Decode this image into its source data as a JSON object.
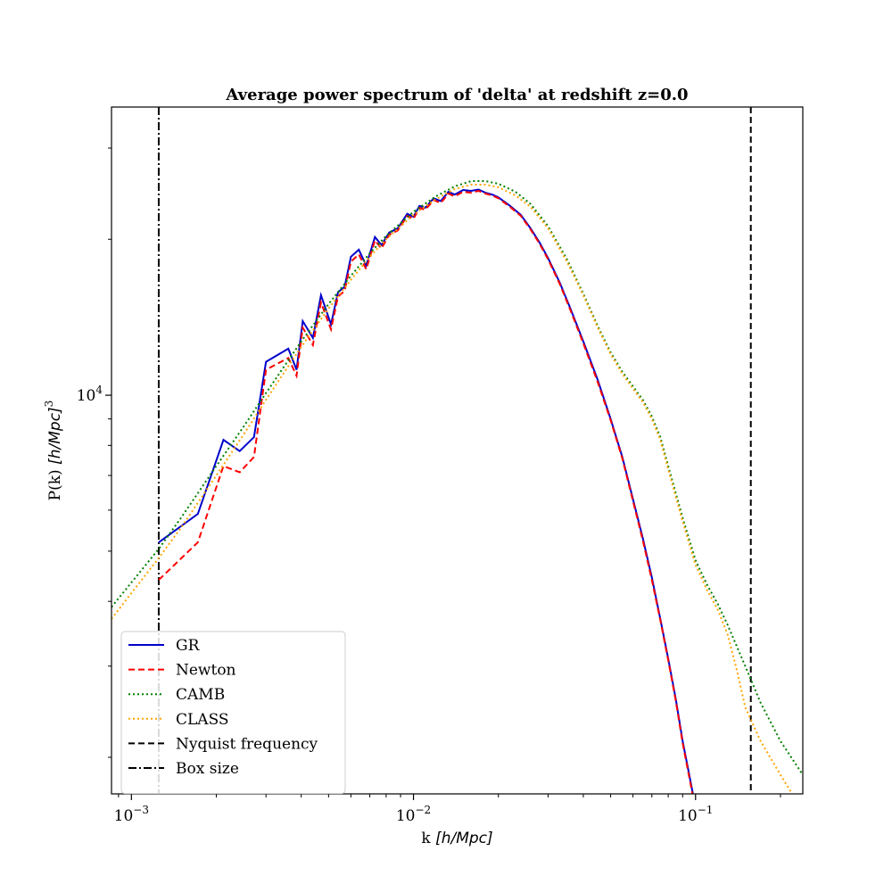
{
  "chart_data": {
    "type": "line",
    "title": "Average power spectrum of 'delta' at redshift z=0.0",
    "xlabel": {
      "prefix": "k ",
      "unit": "[h/Mpc]"
    },
    "ylabel": {
      "prefix": "P(k) ",
      "unit": "[h/Mpc]",
      "power": "3"
    },
    "xscale": "log",
    "yscale": "log",
    "xlim": [
      0.00085,
      0.24
    ],
    "ylim": [
      1700,
      36000
    ],
    "grid": false,
    "legend_position": "lower-left",
    "x_ticks": [
      {
        "value": 0.001,
        "base": "10",
        "power": "−3"
      },
      {
        "value": 0.01,
        "base": "10",
        "power": "−2"
      },
      {
        "value": 0.1,
        "base": "10",
        "power": "−1"
      }
    ],
    "y_ticks": [
      {
        "value": 10000,
        "base": "10",
        "power": "4"
      }
    ],
    "series": [
      {
        "name": "GR",
        "color": "#0000cc",
        "dash": "solid",
        "points": [
          [
            0.00125,
            5200
          ],
          [
            0.00172,
            5900
          ],
          [
            0.00212,
            8200
          ],
          [
            0.00242,
            7800
          ],
          [
            0.00272,
            8300
          ],
          [
            0.003,
            11600
          ],
          [
            0.0036,
            12300
          ],
          [
            0.00385,
            11200
          ],
          [
            0.00405,
            13900
          ],
          [
            0.0044,
            12900
          ],
          [
            0.0047,
            15600
          ],
          [
            0.0051,
            13700
          ],
          [
            0.0054,
            15800
          ],
          [
            0.0057,
            16200
          ],
          [
            0.006,
            18500
          ],
          [
            0.0064,
            19100
          ],
          [
            0.0068,
            17800
          ],
          [
            0.0073,
            20200
          ],
          [
            0.0077,
            19500
          ],
          [
            0.0082,
            20600
          ],
          [
            0.0088,
            21000
          ],
          [
            0.0095,
            22400
          ],
          [
            0.01,
            22100
          ],
          [
            0.0105,
            23200
          ],
          [
            0.011,
            23000
          ],
          [
            0.0118,
            24000
          ],
          [
            0.0125,
            23700
          ],
          [
            0.0133,
            24700
          ],
          [
            0.014,
            24400
          ],
          [
            0.015,
            24900
          ],
          [
            0.016,
            24800
          ],
          [
            0.017,
            24950
          ],
          [
            0.018,
            24600
          ],
          [
            0.019,
            24400
          ],
          [
            0.02,
            24100
          ],
          [
            0.022,
            23200
          ],
          [
            0.024,
            22300
          ],
          [
            0.026,
            21000
          ],
          [
            0.028,
            19700
          ],
          [
            0.03,
            18400
          ],
          [
            0.033,
            16500
          ],
          [
            0.036,
            14700
          ],
          [
            0.04,
            12700
          ],
          [
            0.045,
            10700
          ],
          [
            0.05,
            9000
          ],
          [
            0.055,
            7600
          ],
          [
            0.06,
            6300
          ],
          [
            0.065,
            5300
          ],
          [
            0.07,
            4450
          ],
          [
            0.075,
            3700
          ],
          [
            0.08,
            3100
          ],
          [
            0.085,
            2600
          ],
          [
            0.09,
            2150
          ],
          [
            0.095,
            1850
          ],
          [
            0.1,
            1600
          ]
        ]
      },
      {
        "name": "Newton",
        "color": "#ff0000",
        "dash": "dashed",
        "points": [
          [
            0.00125,
            4400
          ],
          [
            0.00172,
            5200
          ],
          [
            0.00212,
            7300
          ],
          [
            0.00242,
            7100
          ],
          [
            0.00272,
            7600
          ],
          [
            0.003,
            11200
          ],
          [
            0.0036,
            11800
          ],
          [
            0.00385,
            10900
          ],
          [
            0.00405,
            13500
          ],
          [
            0.0044,
            12500
          ],
          [
            0.0047,
            15100
          ],
          [
            0.0051,
            13400
          ],
          [
            0.0054,
            15500
          ],
          [
            0.0057,
            15900
          ],
          [
            0.006,
            18100
          ],
          [
            0.0064,
            18700
          ],
          [
            0.0068,
            17500
          ],
          [
            0.0073,
            19900
          ],
          [
            0.0077,
            19200
          ],
          [
            0.0082,
            20400
          ],
          [
            0.0088,
            20800
          ],
          [
            0.0095,
            22200
          ],
          [
            0.01,
            21900
          ],
          [
            0.0105,
            23000
          ],
          [
            0.011,
            22800
          ],
          [
            0.0118,
            23800
          ],
          [
            0.0125,
            23500
          ],
          [
            0.0133,
            24500
          ],
          [
            0.014,
            24200
          ],
          [
            0.015,
            24700
          ],
          [
            0.016,
            24600
          ],
          [
            0.017,
            24800
          ],
          [
            0.018,
            24500
          ],
          [
            0.019,
            24300
          ],
          [
            0.02,
            24000
          ],
          [
            0.022,
            23100
          ],
          [
            0.024,
            22200
          ],
          [
            0.026,
            20900
          ],
          [
            0.028,
            19600
          ],
          [
            0.03,
            18300
          ],
          [
            0.033,
            16400
          ],
          [
            0.036,
            14600
          ],
          [
            0.04,
            12600
          ],
          [
            0.045,
            10600
          ],
          [
            0.05,
            8950
          ],
          [
            0.055,
            7550
          ],
          [
            0.06,
            6250
          ],
          [
            0.065,
            5250
          ],
          [
            0.07,
            4400
          ],
          [
            0.075,
            3680
          ],
          [
            0.08,
            3080
          ],
          [
            0.085,
            2580
          ],
          [
            0.09,
            2130
          ],
          [
            0.095,
            1830
          ],
          [
            0.1,
            1580
          ]
        ]
      },
      {
        "name": "CAMB",
        "color": "#008000",
        "dash": "dotted",
        "points": [
          [
            0.00085,
            3900
          ],
          [
            0.001,
            4350
          ],
          [
            0.00125,
            5050
          ],
          [
            0.0015,
            5800
          ],
          [
            0.002,
            7300
          ],
          [
            0.0025,
            8700
          ],
          [
            0.003,
            10100
          ],
          [
            0.004,
            12700
          ],
          [
            0.005,
            15000
          ],
          [
            0.006,
            17000
          ],
          [
            0.007,
            18800
          ],
          [
            0.008,
            20300
          ],
          [
            0.01,
            22600
          ],
          [
            0.012,
            24200
          ],
          [
            0.014,
            25300
          ],
          [
            0.016,
            25900
          ],
          [
            0.018,
            25900
          ],
          [
            0.02,
            25600
          ],
          [
            0.023,
            24700
          ],
          [
            0.026,
            23400
          ],
          [
            0.03,
            21200
          ],
          [
            0.035,
            18300
          ],
          [
            0.04,
            15700
          ],
          [
            0.045,
            13600
          ],
          [
            0.05,
            12100
          ],
          [
            0.055,
            11100
          ],
          [
            0.06,
            10400
          ],
          [
            0.065,
            9800
          ],
          [
            0.07,
            9100
          ],
          [
            0.075,
            8300
          ],
          [
            0.08,
            7300
          ],
          [
            0.09,
            5800
          ],
          [
            0.1,
            4800
          ],
          [
            0.11,
            4300
          ],
          [
            0.12,
            3950
          ],
          [
            0.13,
            3600
          ],
          [
            0.15,
            3000
          ],
          [
            0.17,
            2550
          ],
          [
            0.2,
            2150
          ],
          [
            0.24,
            1850
          ]
        ]
      },
      {
        "name": "CLASS",
        "color": "#ffa500",
        "dash": "dotted",
        "points": [
          [
            0.00085,
            3700
          ],
          [
            0.001,
            4150
          ],
          [
            0.00125,
            4850
          ],
          [
            0.0015,
            5550
          ],
          [
            0.002,
            7000
          ],
          [
            0.0025,
            8400
          ],
          [
            0.003,
            9800
          ],
          [
            0.004,
            12400
          ],
          [
            0.005,
            14700
          ],
          [
            0.006,
            16700
          ],
          [
            0.007,
            18500
          ],
          [
            0.008,
            20000
          ],
          [
            0.01,
            22300
          ],
          [
            0.012,
            23900
          ],
          [
            0.014,
            25000
          ],
          [
            0.016,
            25500
          ],
          [
            0.018,
            25500
          ],
          [
            0.02,
            25200
          ],
          [
            0.023,
            24300
          ],
          [
            0.026,
            23100
          ],
          [
            0.03,
            21000
          ],
          [
            0.035,
            18100
          ],
          [
            0.04,
            15600
          ],
          [
            0.045,
            13500
          ],
          [
            0.05,
            12000
          ],
          [
            0.055,
            11000
          ],
          [
            0.06,
            10300
          ],
          [
            0.065,
            9700
          ],
          [
            0.07,
            9000
          ],
          [
            0.075,
            8200
          ],
          [
            0.08,
            7200
          ],
          [
            0.09,
            5700
          ],
          [
            0.1,
            4700
          ],
          [
            0.11,
            4200
          ],
          [
            0.12,
            3850
          ],
          [
            0.13,
            3450
          ],
          [
            0.14,
            2950
          ],
          [
            0.15,
            2500
          ],
          [
            0.17,
            2150
          ],
          [
            0.2,
            1850
          ],
          [
            0.22,
            1700
          ]
        ]
      }
    ],
    "reference_lines": [
      {
        "name": "Nyquist frequency",
        "x": 0.157,
        "color": "#000000",
        "dash": "dashed"
      },
      {
        "name": "Box size",
        "x": 0.00125,
        "color": "#000000",
        "dash": "dashdot"
      }
    ]
  }
}
